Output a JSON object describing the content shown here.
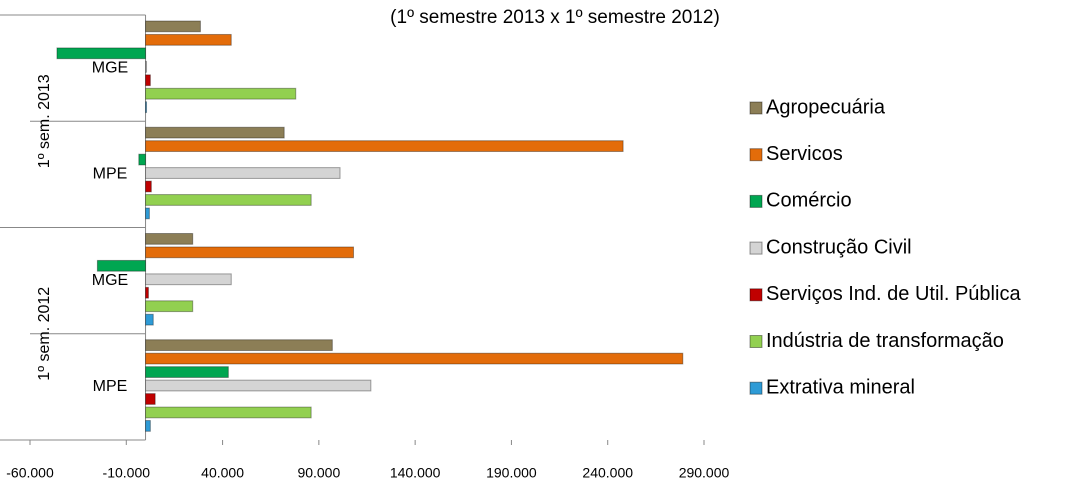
{
  "chart_data": {
    "type": "hbar",
    "subtitle": "(1º semestre 2013 x 1º semestre 2012)",
    "categories": [
      "MGE",
      "MPE",
      "MGE",
      "MPE"
    ],
    "groups": [
      {
        "label": "1º sem. 2013",
        "categories": [
          0,
          1
        ]
      },
      {
        "label": "1º sem. 2012",
        "categories": [
          2,
          3
        ]
      }
    ],
    "series": [
      {
        "name": "Agropecuária",
        "color": "#8c7e56",
        "values": [
          28500,
          72000,
          24500,
          97000
        ]
      },
      {
        "name": "Servicos",
        "color": "#e36c0a",
        "values": [
          44500,
          248000,
          108000,
          279000
        ]
      },
      {
        "name": "Comércio",
        "color": "#00a651",
        "values": [
          -46000,
          -3500,
          -25000,
          43000
        ]
      },
      {
        "name": "Construção Civil",
        "color": "#d4d4d4",
        "values": [
          0,
          101000,
          44500,
          117000
        ]
      },
      {
        "name": "Serviços Ind. de Util. Pública",
        "color": "#c00000",
        "values": [
          2500,
          3000,
          1500,
          5000
        ]
      },
      {
        "name": "Indústria de transformação",
        "color": "#92d050",
        "values": [
          78000,
          86000,
          24500,
          86000
        ]
      },
      {
        "name": "Extrativa mineral",
        "color": "#2e9bd6",
        "values": [
          500,
          2000,
          4000,
          2500
        ]
      }
    ],
    "xlim": [
      -60000,
      290000
    ],
    "xticks": [
      {
        "value": -60000,
        "label": "-60.000"
      },
      {
        "value": -10000,
        "label": "-10.000"
      },
      {
        "value": 40000,
        "label": "40.000"
      },
      {
        "value": 90000,
        "label": "90.000"
      },
      {
        "value": 140000,
        "label": "140.000"
      },
      {
        "value": 190000,
        "label": "190.000"
      },
      {
        "value": 240000,
        "label": "240.000"
      },
      {
        "value": 290000,
        "label": "290.000"
      }
    ],
    "grid": false,
    "legend": "right"
  }
}
